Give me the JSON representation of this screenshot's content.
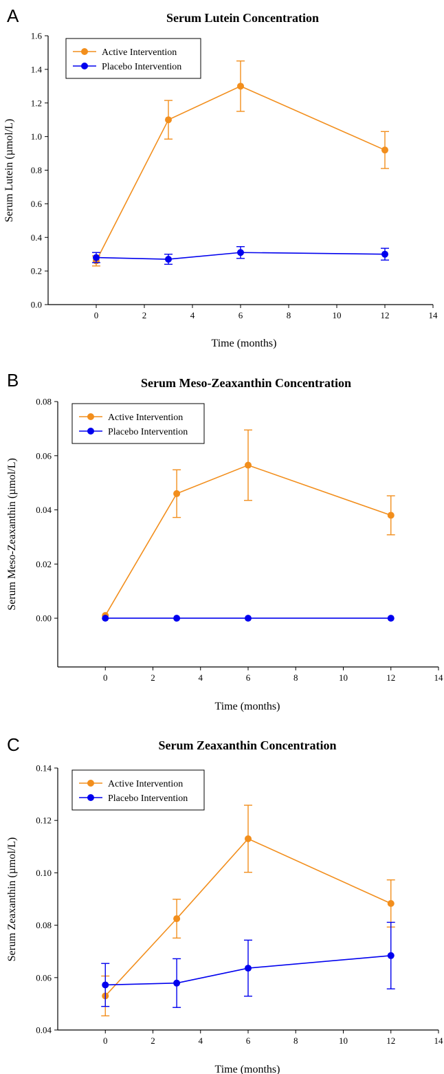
{
  "chart_data": [
    {
      "panel": "A",
      "type": "line",
      "title": "Serum Lutein Concentration",
      "xlabel": "Time (months)",
      "ylabel": "Serum Lutein (µmol/L)",
      "xlim": [
        -2,
        14
      ],
      "ylim": [
        0,
        1.6
      ],
      "xticks": [
        0,
        2,
        4,
        6,
        8,
        10,
        12,
        14
      ],
      "yticks": [
        0.0,
        0.2,
        0.4,
        0.6,
        0.8,
        1.0,
        1.2,
        1.4,
        1.6
      ],
      "ytick_labels": [
        "0.0",
        "0.2",
        "0.4",
        "0.6",
        "0.8",
        "1.0",
        "1.2",
        "1.4",
        "1.6"
      ],
      "legend": "top-left",
      "series": [
        {
          "name": "Active Intervention",
          "color": "#f28e1c",
          "x": [
            0,
            3,
            6,
            12
          ],
          "y": [
            0.26,
            1.1,
            1.3,
            0.92
          ],
          "err": [
            0.03,
            0.115,
            0.15,
            0.11
          ]
        },
        {
          "name": "Placebo Intervention",
          "color": "#0000ee",
          "x": [
            0,
            3,
            6,
            12
          ],
          "y": [
            0.28,
            0.27,
            0.31,
            0.3
          ],
          "err": [
            0.03,
            0.03,
            0.035,
            0.035
          ]
        }
      ]
    },
    {
      "panel": "B",
      "type": "line",
      "title": "Serum Meso-Zeaxanthin Concentration",
      "xlabel": "Time (months)",
      "ylabel": "Serum Meso-Zeaxanthin (µmol/L)",
      "xlim": [
        -2,
        14
      ],
      "ylim": [
        -0.018,
        0.08
      ],
      "xticks": [
        0,
        2,
        4,
        6,
        8,
        10,
        12,
        14
      ],
      "yticks": [
        0.0,
        0.02,
        0.04,
        0.06,
        0.08
      ],
      "ytick_labels": [
        "0.00",
        "0.02",
        "0.04",
        "0.06",
        "0.08"
      ],
      "legend": "top-left",
      "series": [
        {
          "name": "Active Intervention",
          "color": "#f28e1c",
          "x": [
            0,
            3,
            6,
            12
          ],
          "y": [
            0.001,
            0.046,
            0.0565,
            0.038
          ],
          "err": [
            0,
            0.0088,
            0.013,
            0.0072
          ]
        },
        {
          "name": "Placebo Intervention",
          "color": "#0000ee",
          "x": [
            0,
            3,
            6,
            12
          ],
          "y": [
            0.0,
            0.0,
            0.0,
            0.0
          ],
          "err": [
            0,
            0,
            0,
            0
          ]
        }
      ]
    },
    {
      "panel": "C",
      "type": "line",
      "title": "Serum Zeaxanthin Concentration",
      "xlabel": "Time (months)",
      "ylabel": "Serum Zeaxanthin (µmol/L)",
      "xlim": [
        -2,
        14
      ],
      "ylim": [
        0.04,
        0.14
      ],
      "xticks": [
        0,
        2,
        4,
        6,
        8,
        10,
        12,
        14
      ],
      "yticks": [
        0.04,
        0.06,
        0.08,
        0.1,
        0.12,
        0.14
      ],
      "ytick_labels": [
        "0.04",
        "0.06",
        "0.08",
        "0.10",
        "0.12",
        "0.14"
      ],
      "legend": "top-left",
      "series": [
        {
          "name": "Active Intervention",
          "color": "#f28e1c",
          "x": [
            0,
            3,
            6,
            12
          ],
          "y": [
            0.053,
            0.0825,
            0.113,
            0.0883
          ],
          "err": [
            0.0076,
            0.0074,
            0.0128,
            0.009
          ]
        },
        {
          "name": "Placebo Intervention",
          "color": "#0000ee",
          "x": [
            0,
            3,
            6,
            12
          ],
          "y": [
            0.0572,
            0.0579,
            0.0636,
            0.0684
          ],
          "err": [
            0.0082,
            0.0093,
            0.0107,
            0.0127
          ]
        }
      ]
    }
  ]
}
